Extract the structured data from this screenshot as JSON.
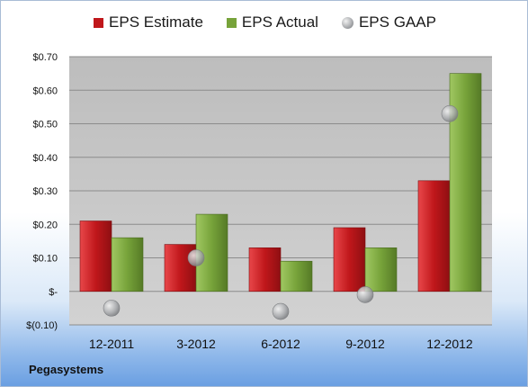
{
  "colors": {
    "estimate": "#c0171b",
    "actual": "#77a33a",
    "gaap": "#a7a9ac",
    "plot_bg": "#c8c8c8"
  },
  "legend": {
    "estimate": "EPS Estimate",
    "actual": "EPS Actual",
    "gaap": "EPS GAAP"
  },
  "footer": {
    "company": "Pegasystems"
  },
  "chart_data": {
    "type": "bar",
    "title": "",
    "xlabel": "",
    "ylabel": "",
    "categories": [
      "12-2011",
      "3-2012",
      "6-2012",
      "9-2012",
      "12-2012"
    ],
    "series": [
      {
        "name": "EPS Estimate",
        "kind": "bar",
        "values": [
          0.21,
          0.14,
          0.13,
          0.19,
          0.33
        ]
      },
      {
        "name": "EPS Actual",
        "kind": "bar",
        "values": [
          0.16,
          0.23,
          0.09,
          0.13,
          0.65
        ]
      },
      {
        "name": "EPS GAAP",
        "kind": "marker",
        "values": [
          -0.05,
          0.1,
          -0.06,
          -0.01,
          0.53
        ]
      }
    ],
    "ylim": [
      -0.1,
      0.7
    ],
    "yticks": [
      -0.1,
      0.0,
      0.1,
      0.2,
      0.3,
      0.4,
      0.5,
      0.6,
      0.7
    ],
    "ytick_labels": [
      "$(0.10)",
      "$-",
      "$0.10",
      "$0.20",
      "$0.30",
      "$0.40",
      "$0.50",
      "$0.60",
      "$0.70"
    ],
    "grid": true,
    "legend_position": "top"
  }
}
